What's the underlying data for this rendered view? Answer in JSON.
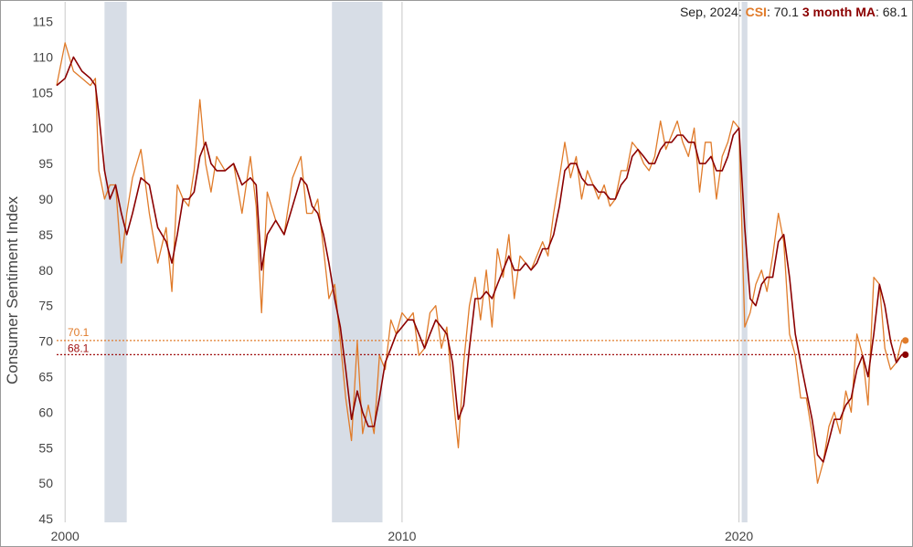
{
  "chart_data": {
    "type": "line",
    "ylabel": "Consumer Sentiment Index",
    "xlim": [
      1999.75,
      2024.92
    ],
    "ylim": [
      44.5,
      117
    ],
    "yticks": [
      45,
      50,
      55,
      60,
      65,
      70,
      75,
      80,
      85,
      90,
      95,
      100,
      105,
      110,
      115
    ],
    "xticks": [
      {
        "x": 2000,
        "label": "2000"
      },
      {
        "x": 2010,
        "label": "2010"
      },
      {
        "x": 2020,
        "label": "2020"
      }
    ],
    "decade_gridlines": [
      2000,
      2010,
      2020
    ],
    "recessions": [
      [
        2001.17,
        2001.83
      ],
      [
        2007.92,
        2009.42
      ],
      [
        2020.08,
        2020.25
      ]
    ],
    "reference_lines": [
      {
        "series": "csi",
        "value": 70.1,
        "label": "70.1",
        "color": "#e07b2a"
      },
      {
        "series": "ma",
        "value": 68.1,
        "label": "68.1",
        "color": "#a01010"
      }
    ],
    "colors": {
      "csi": "#e07b2a",
      "ma": "#8b0000",
      "recession": "#d7dde6",
      "grid": "#c8c8c8"
    },
    "series": [
      {
        "name": "CSI",
        "key": "csi",
        "points": [
          [
            1999.75,
            106
          ],
          [
            2000.0,
            112
          ],
          [
            2000.25,
            108
          ],
          [
            2000.5,
            107
          ],
          [
            2000.75,
            106
          ],
          [
            2000.9,
            107
          ],
          [
            2001.0,
            94
          ],
          [
            2001.17,
            90
          ],
          [
            2001.33,
            92
          ],
          [
            2001.5,
            92
          ],
          [
            2001.67,
            81
          ],
          [
            2001.83,
            88
          ],
          [
            2002.0,
            93
          ],
          [
            2002.25,
            97
          ],
          [
            2002.5,
            88
          ],
          [
            2002.75,
            81
          ],
          [
            2003.0,
            86
          ],
          [
            2003.17,
            77
          ],
          [
            2003.33,
            92
          ],
          [
            2003.5,
            90
          ],
          [
            2003.67,
            89
          ],
          [
            2003.83,
            94
          ],
          [
            2004.0,
            104
          ],
          [
            2004.17,
            95
          ],
          [
            2004.33,
            91
          ],
          [
            2004.5,
            96
          ],
          [
            2004.75,
            94
          ],
          [
            2005.0,
            95
          ],
          [
            2005.25,
            88
          ],
          [
            2005.5,
            96
          ],
          [
            2005.67,
            89
          ],
          [
            2005.83,
            74
          ],
          [
            2006.0,
            91
          ],
          [
            2006.25,
            87
          ],
          [
            2006.5,
            85
          ],
          [
            2006.75,
            93
          ],
          [
            2007.0,
            96
          ],
          [
            2007.17,
            88
          ],
          [
            2007.33,
            88
          ],
          [
            2007.5,
            90
          ],
          [
            2007.67,
            83
          ],
          [
            2007.83,
            76
          ],
          [
            2008.0,
            78
          ],
          [
            2008.17,
            70
          ],
          [
            2008.33,
            62
          ],
          [
            2008.5,
            56
          ],
          [
            2008.67,
            70
          ],
          [
            2008.83,
            57
          ],
          [
            2009.0,
            61
          ],
          [
            2009.17,
            57
          ],
          [
            2009.33,
            68
          ],
          [
            2009.5,
            66
          ],
          [
            2009.67,
            73
          ],
          [
            2009.83,
            71
          ],
          [
            2010.0,
            74
          ],
          [
            2010.17,
            73
          ],
          [
            2010.33,
            74
          ],
          [
            2010.5,
            68
          ],
          [
            2010.67,
            69
          ],
          [
            2010.83,
            74
          ],
          [
            2011.0,
            75
          ],
          [
            2011.17,
            69
          ],
          [
            2011.33,
            72
          ],
          [
            2011.5,
            63
          ],
          [
            2011.67,
            55
          ],
          [
            2011.83,
            67
          ],
          [
            2012.0,
            75
          ],
          [
            2012.17,
            79
          ],
          [
            2012.33,
            73
          ],
          [
            2012.5,
            80
          ],
          [
            2012.67,
            72
          ],
          [
            2012.83,
            83
          ],
          [
            2013.0,
            79
          ],
          [
            2013.17,
            85
          ],
          [
            2013.33,
            76
          ],
          [
            2013.5,
            82
          ],
          [
            2013.67,
            81
          ],
          [
            2013.83,
            80
          ],
          [
            2014.0,
            82
          ],
          [
            2014.17,
            84
          ],
          [
            2014.33,
            82
          ],
          [
            2014.5,
            88
          ],
          [
            2014.67,
            93
          ],
          [
            2014.83,
            98
          ],
          [
            2015.0,
            93
          ],
          [
            2015.17,
            96
          ],
          [
            2015.33,
            90
          ],
          [
            2015.5,
            94
          ],
          [
            2015.67,
            92
          ],
          [
            2015.83,
            90
          ],
          [
            2016.0,
            92
          ],
          [
            2016.17,
            89
          ],
          [
            2016.33,
            90
          ],
          [
            2016.5,
            94
          ],
          [
            2016.67,
            94
          ],
          [
            2016.83,
            98
          ],
          [
            2017.0,
            97
          ],
          [
            2017.17,
            95
          ],
          [
            2017.33,
            94
          ],
          [
            2017.5,
            96
          ],
          [
            2017.67,
            101
          ],
          [
            2017.83,
            97
          ],
          [
            2018.0,
            99
          ],
          [
            2018.17,
            101
          ],
          [
            2018.33,
            98
          ],
          [
            2018.5,
            96
          ],
          [
            2018.67,
            100
          ],
          [
            2018.83,
            91
          ],
          [
            2019.0,
            98
          ],
          [
            2019.17,
            98
          ],
          [
            2019.33,
            90
          ],
          [
            2019.5,
            96
          ],
          [
            2019.67,
            98
          ],
          [
            2019.83,
            101
          ],
          [
            2020.0,
            100
          ],
          [
            2020.17,
            72
          ],
          [
            2020.33,
            74
          ],
          [
            2020.5,
            78
          ],
          [
            2020.67,
            80
          ],
          [
            2020.83,
            77
          ],
          [
            2021.0,
            82
          ],
          [
            2021.17,
            88
          ],
          [
            2021.33,
            84
          ],
          [
            2021.5,
            71
          ],
          [
            2021.67,
            68
          ],
          [
            2021.83,
            62
          ],
          [
            2022.0,
            62
          ],
          [
            2022.17,
            57
          ],
          [
            2022.33,
            50
          ],
          [
            2022.5,
            53
          ],
          [
            2022.67,
            58
          ],
          [
            2022.83,
            60
          ],
          [
            2023.0,
            57
          ],
          [
            2023.17,
            63
          ],
          [
            2023.33,
            60
          ],
          [
            2023.5,
            71
          ],
          [
            2023.67,
            68
          ],
          [
            2023.83,
            61
          ],
          [
            2024.0,
            79
          ],
          [
            2024.17,
            78
          ],
          [
            2024.33,
            69
          ],
          [
            2024.5,
            66
          ],
          [
            2024.67,
            67
          ],
          [
            2024.83,
            70.1
          ]
        ]
      },
      {
        "name": "3 month MA",
        "key": "ma",
        "points": [
          [
            1999.75,
            106
          ],
          [
            2000.0,
            107
          ],
          [
            2000.25,
            110
          ],
          [
            2000.5,
            108
          ],
          [
            2000.75,
            107
          ],
          [
            2000.9,
            106
          ],
          [
            2001.0,
            102
          ],
          [
            2001.17,
            94
          ],
          [
            2001.33,
            90
          ],
          [
            2001.5,
            92
          ],
          [
            2001.67,
            88
          ],
          [
            2001.83,
            85
          ],
          [
            2002.0,
            88
          ],
          [
            2002.25,
            93
          ],
          [
            2002.5,
            92
          ],
          [
            2002.75,
            86
          ],
          [
            2003.0,
            84
          ],
          [
            2003.17,
            81
          ],
          [
            2003.33,
            85
          ],
          [
            2003.5,
            90
          ],
          [
            2003.67,
            90
          ],
          [
            2003.83,
            91
          ],
          [
            2004.0,
            96
          ],
          [
            2004.17,
            98
          ],
          [
            2004.33,
            95
          ],
          [
            2004.5,
            94
          ],
          [
            2004.75,
            94
          ],
          [
            2005.0,
            95
          ],
          [
            2005.25,
            92
          ],
          [
            2005.5,
            93
          ],
          [
            2005.67,
            92
          ],
          [
            2005.83,
            80
          ],
          [
            2006.0,
            85
          ],
          [
            2006.25,
            87
          ],
          [
            2006.5,
            85
          ],
          [
            2006.75,
            89
          ],
          [
            2007.0,
            93
          ],
          [
            2007.17,
            92
          ],
          [
            2007.33,
            89
          ],
          [
            2007.5,
            88
          ],
          [
            2007.67,
            85
          ],
          [
            2007.83,
            81
          ],
          [
            2008.0,
            76
          ],
          [
            2008.17,
            72
          ],
          [
            2008.33,
            66
          ],
          [
            2008.5,
            59
          ],
          [
            2008.67,
            63
          ],
          [
            2008.83,
            60
          ],
          [
            2009.0,
            58
          ],
          [
            2009.17,
            58
          ],
          [
            2009.33,
            62
          ],
          [
            2009.5,
            67
          ],
          [
            2009.67,
            69
          ],
          [
            2009.83,
            71
          ],
          [
            2010.0,
            72
          ],
          [
            2010.17,
            73
          ],
          [
            2010.33,
            73
          ],
          [
            2010.5,
            71
          ],
          [
            2010.67,
            69
          ],
          [
            2010.83,
            71
          ],
          [
            2011.0,
            73
          ],
          [
            2011.17,
            72
          ],
          [
            2011.33,
            71
          ],
          [
            2011.5,
            67
          ],
          [
            2011.67,
            59
          ],
          [
            2011.83,
            61
          ],
          [
            2012.0,
            69
          ],
          [
            2012.17,
            76
          ],
          [
            2012.33,
            76
          ],
          [
            2012.5,
            77
          ],
          [
            2012.67,
            76
          ],
          [
            2012.83,
            78
          ],
          [
            2013.0,
            80
          ],
          [
            2013.17,
            82
          ],
          [
            2013.33,
            80
          ],
          [
            2013.5,
            80
          ],
          [
            2013.67,
            81
          ],
          [
            2013.83,
            80
          ],
          [
            2014.0,
            81
          ],
          [
            2014.17,
            83
          ],
          [
            2014.33,
            83
          ],
          [
            2014.5,
            85
          ],
          [
            2014.67,
            89
          ],
          [
            2014.83,
            94
          ],
          [
            2015.0,
            95
          ],
          [
            2015.17,
            95
          ],
          [
            2015.33,
            93
          ],
          [
            2015.5,
            92
          ],
          [
            2015.67,
            92
          ],
          [
            2015.83,
            91
          ],
          [
            2016.0,
            91
          ],
          [
            2016.17,
            90
          ],
          [
            2016.33,
            90
          ],
          [
            2016.5,
            92
          ],
          [
            2016.67,
            93
          ],
          [
            2016.83,
            96
          ],
          [
            2017.0,
            97
          ],
          [
            2017.17,
            96
          ],
          [
            2017.33,
            95
          ],
          [
            2017.5,
            95
          ],
          [
            2017.67,
            97
          ],
          [
            2017.83,
            98
          ],
          [
            2018.0,
            98
          ],
          [
            2018.17,
            99
          ],
          [
            2018.33,
            99
          ],
          [
            2018.5,
            98
          ],
          [
            2018.67,
            98
          ],
          [
            2018.83,
            95
          ],
          [
            2019.0,
            95
          ],
          [
            2019.17,
            96
          ],
          [
            2019.33,
            94
          ],
          [
            2019.5,
            94
          ],
          [
            2019.67,
            96
          ],
          [
            2019.83,
            99
          ],
          [
            2020.0,
            100
          ],
          [
            2020.17,
            86
          ],
          [
            2020.33,
            76
          ],
          [
            2020.5,
            75
          ],
          [
            2020.67,
            78
          ],
          [
            2020.83,
            79
          ],
          [
            2021.0,
            79
          ],
          [
            2021.17,
            84
          ],
          [
            2021.33,
            85
          ],
          [
            2021.5,
            79
          ],
          [
            2021.67,
            71
          ],
          [
            2021.83,
            67
          ],
          [
            2022.0,
            63
          ],
          [
            2022.17,
            59
          ],
          [
            2022.33,
            54
          ],
          [
            2022.5,
            53
          ],
          [
            2022.67,
            56
          ],
          [
            2022.83,
            59
          ],
          [
            2023.0,
            59
          ],
          [
            2023.17,
            61
          ],
          [
            2023.33,
            62
          ],
          [
            2023.5,
            66
          ],
          [
            2023.67,
            68
          ],
          [
            2023.83,
            65
          ],
          [
            2024.0,
            71
          ],
          [
            2024.17,
            78
          ],
          [
            2024.33,
            75
          ],
          [
            2024.5,
            70
          ],
          [
            2024.67,
            67
          ],
          [
            2024.83,
            68.1
          ]
        ]
      }
    ]
  },
  "legend": {
    "date": "Sep, 2024",
    "csi_label": "CSI",
    "csi_value": "70.1",
    "ma_label": "3 month MA",
    "ma_value": "68.1"
  }
}
